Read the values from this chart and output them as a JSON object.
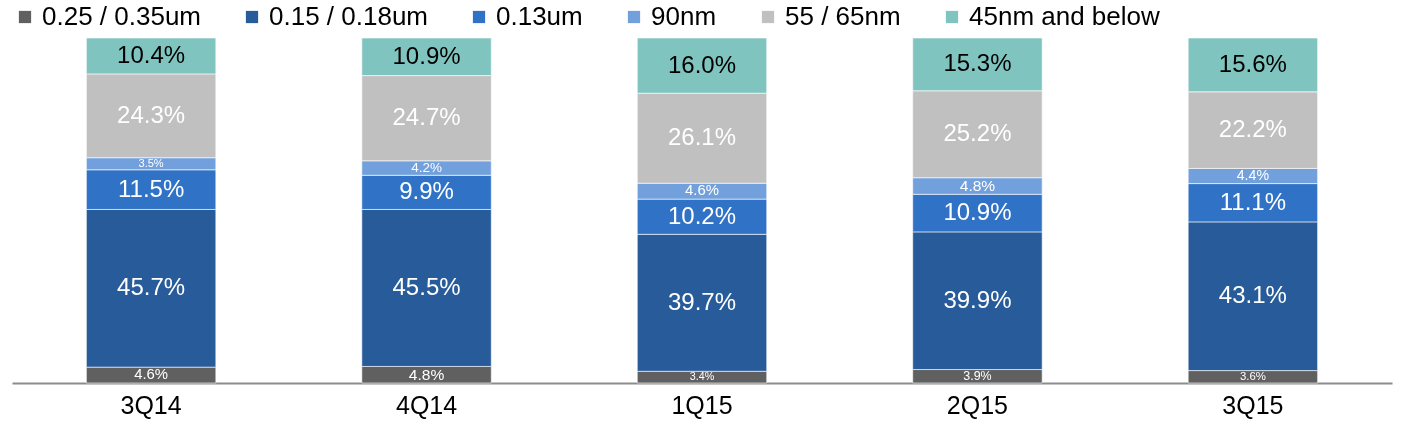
{
  "chart_data": {
    "type": "bar",
    "stacked": true,
    "legend": "top",
    "categories": [
      "3Q14",
      "4Q14",
      "1Q15",
      "2Q15",
      "3Q15"
    ],
    "series": [
      {
        "name": "0.25 / 0.35um",
        "color": "#606060",
        "values": [
          4.6,
          4.8,
          3.4,
          3.9,
          3.6
        ],
        "value_labels": [
          "4.6%",
          "4.8%",
          "3.4%",
          "3.9%",
          "3.6%"
        ]
      },
      {
        "name": "0.15 / 0.18um",
        "color": "#285b9a",
        "values": [
          45.7,
          45.5,
          39.7,
          39.9,
          43.1
        ],
        "value_labels": [
          "45.7%",
          "45.5%",
          "39.7%",
          "39.9%",
          "43.1%"
        ]
      },
      {
        "name": "0.13um",
        "color": "#3072c6",
        "values": [
          11.5,
          9.9,
          10.2,
          10.9,
          11.1
        ],
        "value_labels": [
          "11.5%",
          "9.9%",
          "10.2%",
          "10.9%",
          "11.1%"
        ]
      },
      {
        "name": "90nm",
        "color": "#72a0dc",
        "values": [
          3.5,
          4.2,
          4.6,
          4.8,
          4.4
        ],
        "value_labels": [
          "3.5%",
          "4.2%",
          "4.6%",
          "4.8%",
          "4.4%"
        ]
      },
      {
        "name": "55 / 65nm",
        "color": "#c0c0c0",
        "values": [
          24.3,
          24.7,
          26.1,
          25.2,
          22.2
        ],
        "value_labels": [
          "24.3%",
          "24.7%",
          "26.1%",
          "25.2%",
          "22.2%"
        ]
      },
      {
        "name": "45nm and below",
        "color": "#80c4c0",
        "values": [
          10.4,
          10.9,
          16.0,
          15.3,
          15.6
        ],
        "value_labels": [
          "10.4%",
          "10.9%",
          "16.0%",
          "15.3%",
          "15.6%"
        ]
      }
    ]
  }
}
